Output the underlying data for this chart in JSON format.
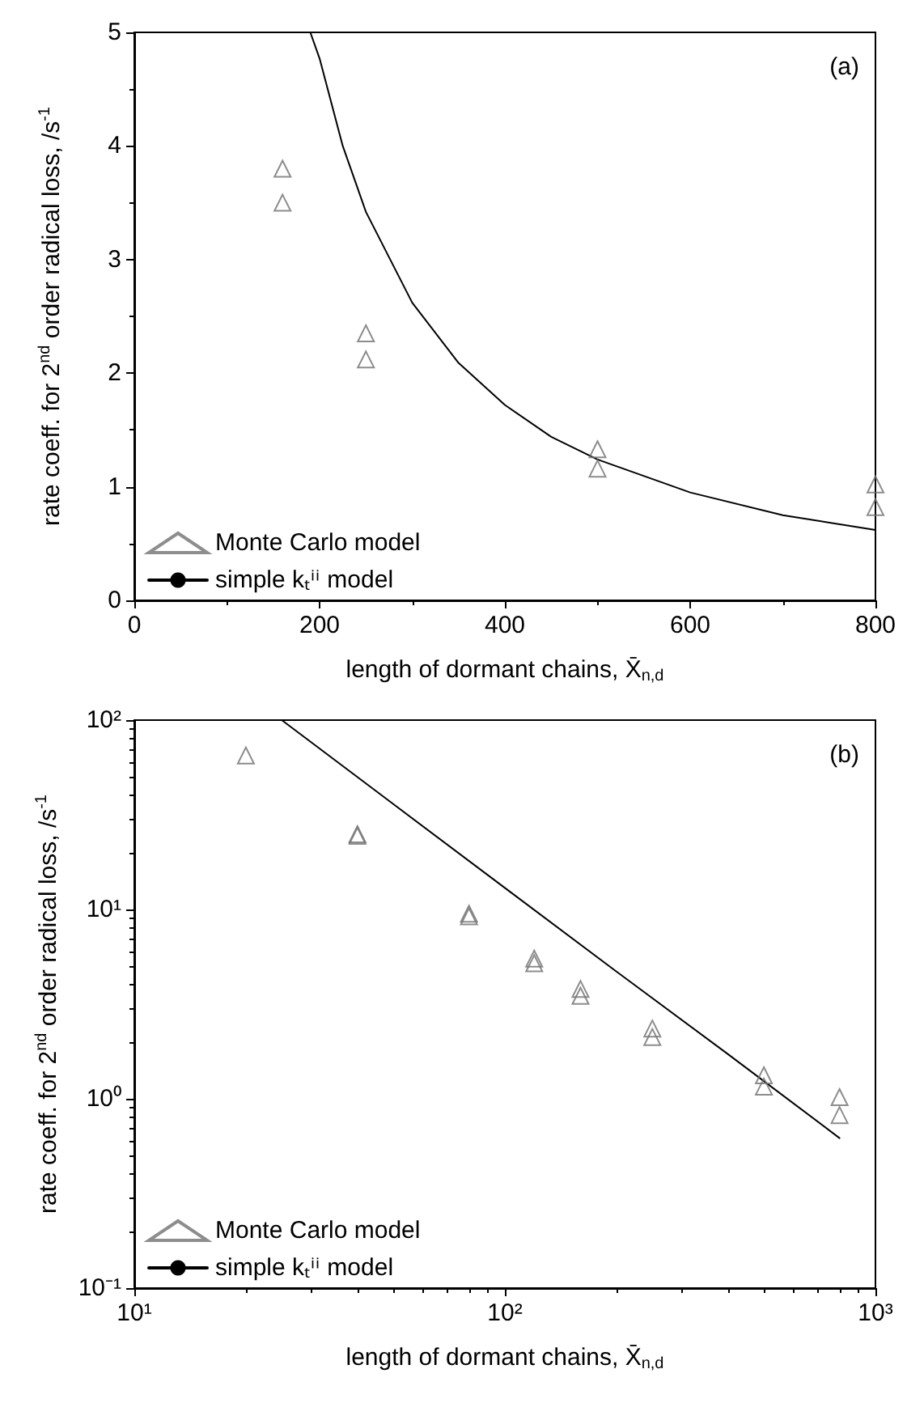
{
  "chart_data": [
    {
      "type": "scatter",
      "xlabel": "length of dormant chains, X̄$_{n,d}$",
      "ylabel": "rate coeff. for 2$^{nd}$ order radical loss, /s$^{-1}$",
      "annotations": [
        "(a)"
      ],
      "xlim": [
        0,
        800
      ],
      "xticks": [
        0,
        200,
        400,
        600,
        800
      ],
      "ylim": [
        0,
        5
      ],
      "yticks": [
        0,
        1,
        2,
        3,
        4,
        5
      ],
      "grid": false,
      "legend": "bottom left",
      "series": [
        {
          "name": "Monte Carlo model",
          "type": "scatter",
          "marker": "triangle",
          "color": "#707070",
          "x": [
            160,
            160,
            250,
            250,
            500,
            500,
            800,
            800
          ],
          "values": [
            3.8,
            3.5,
            2.35,
            2.12,
            1.33,
            1.16,
            1.02,
            0.82
          ]
        },
        {
          "name": "simple kₜⁱⁱ model",
          "type": "line",
          "marker": "none",
          "line_style": "solid",
          "color": "#000000",
          "x": [
            190,
            200,
            225,
            250,
            300,
            350,
            400,
            450,
            500,
            600,
            700,
            800
          ],
          "values": [
            5.0,
            4.77,
            4.0,
            3.42,
            2.62,
            2.09,
            1.72,
            1.44,
            1.24,
            0.95,
            0.75,
            0.62
          ]
        }
      ]
    },
    {
      "type": "scatter",
      "xlabel": "length of dormant chains, X̄$_{n,d}$",
      "ylabel": "rate coeff. for 2$^{nd}$ order radical loss, /s$^{-1}$",
      "annotations": [
        "(b)"
      ],
      "log": "xy",
      "xlim": [
        10,
        1000
      ],
      "xticks": [
        {
          "value": 10,
          "label": "10¹"
        },
        {
          "value": 100,
          "label": "10²"
        },
        {
          "value": 1000,
          "label": "10³"
        }
      ],
      "ylim": [
        0.1,
        100
      ],
      "yticks": [
        {
          "value": 0.1,
          "label": "10⁻¹"
        },
        {
          "value": 1,
          "label": "10⁰"
        },
        {
          "value": 10,
          "label": "10¹"
        },
        {
          "value": 100,
          "label": "10²"
        }
      ],
      "grid": false,
      "legend": "bottom left",
      "series": [
        {
          "name": "Monte Carlo model",
          "type": "scatter",
          "marker": "triangle",
          "color": "#707070",
          "x": [
            20,
            40,
            40,
            80,
            80,
            120,
            120,
            160,
            160,
            250,
            250,
            500,
            500,
            800,
            800
          ],
          "values": [
            65,
            25,
            24.5,
            9.5,
            9.2,
            5.5,
            5.2,
            3.8,
            3.5,
            2.35,
            2.12,
            1.33,
            1.16,
            1.02,
            0.82
          ]
        },
        {
          "name": "simple kₜⁱⁱ model",
          "type": "line",
          "marker": "none",
          "line_style": "solid",
          "color": "#000000",
          "x": [
            25,
            50,
            100,
            200,
            400,
            800
          ],
          "values": [
            100,
            36,
            13,
            4.7,
            1.72,
            0.62
          ]
        }
      ]
    }
  ]
}
